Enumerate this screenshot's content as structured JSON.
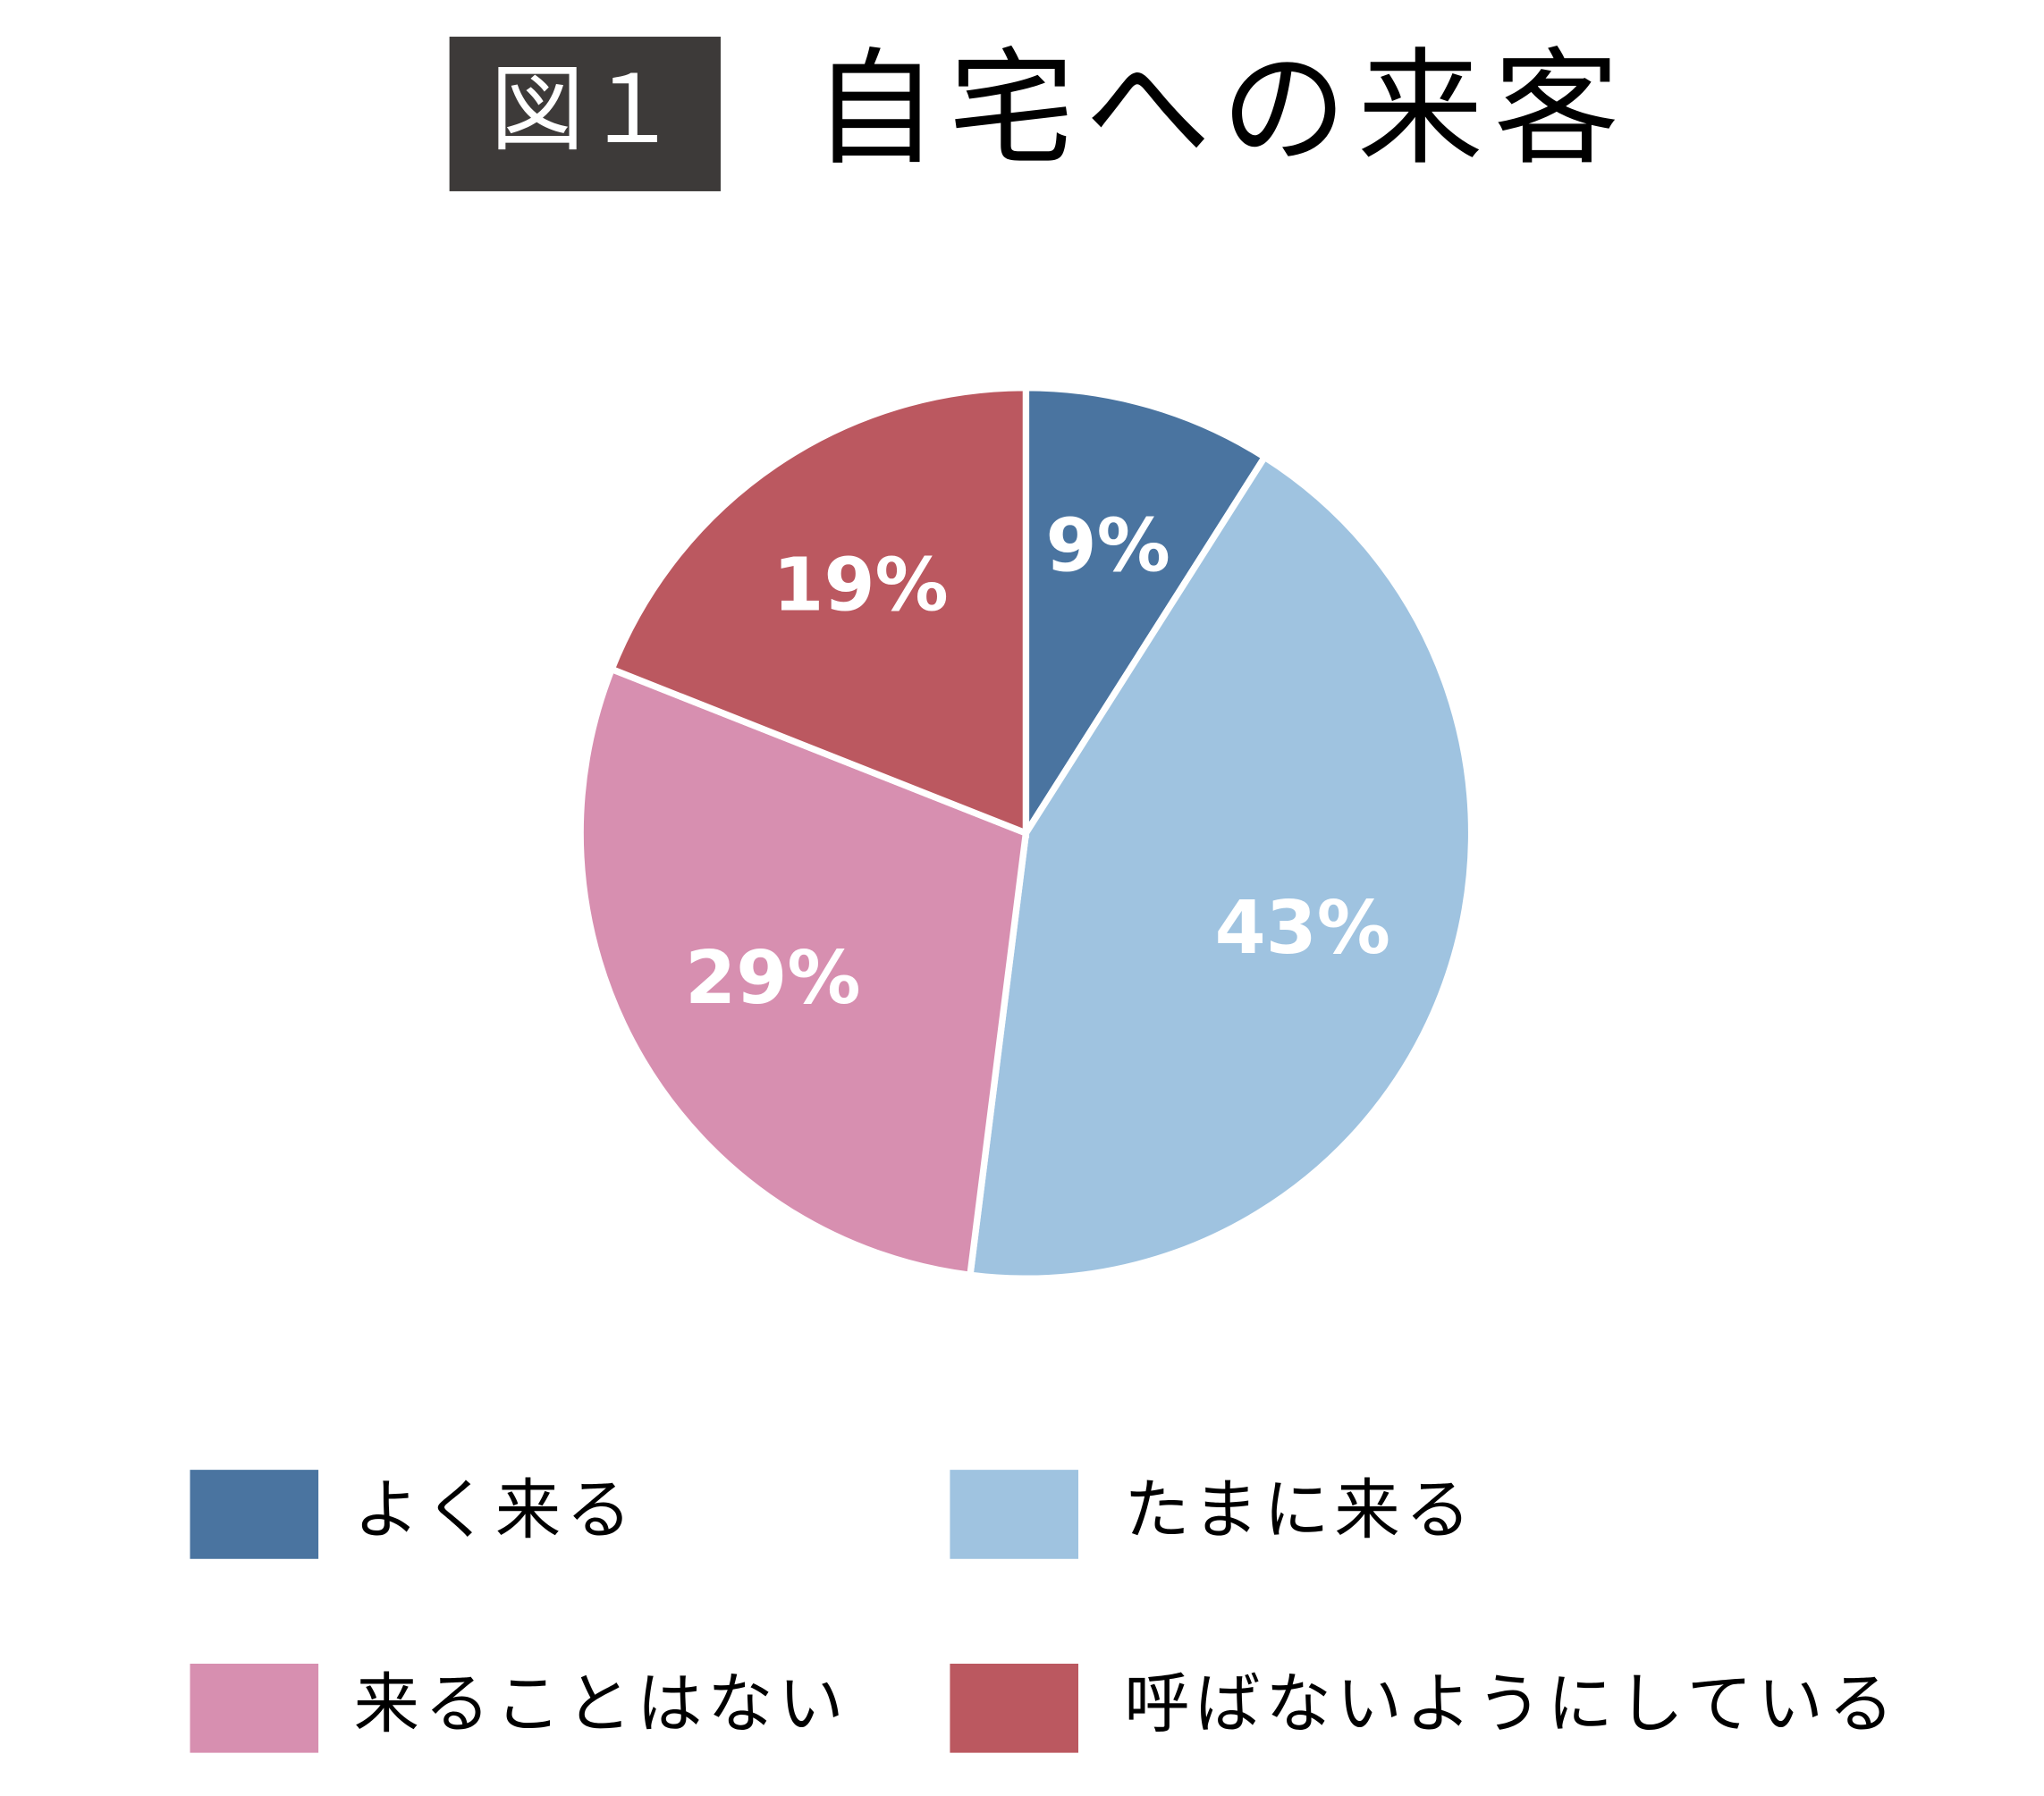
{
  "chart_data": {
    "type": "pie",
    "figure_label": "図１",
    "title": "自宅への来客",
    "categories": [
      "よく来る",
      "たまに来る",
      "来ることはない",
      "呼ばないようにしている"
    ],
    "values": [
      9,
      43,
      29,
      19
    ],
    "value_labels": [
      "9%",
      "43%",
      "29%",
      "19%"
    ],
    "colors": [
      "#4a74a0",
      "#9fc3e0",
      "#d78fb0",
      "#bb5860"
    ],
    "legend": "bottom"
  }
}
